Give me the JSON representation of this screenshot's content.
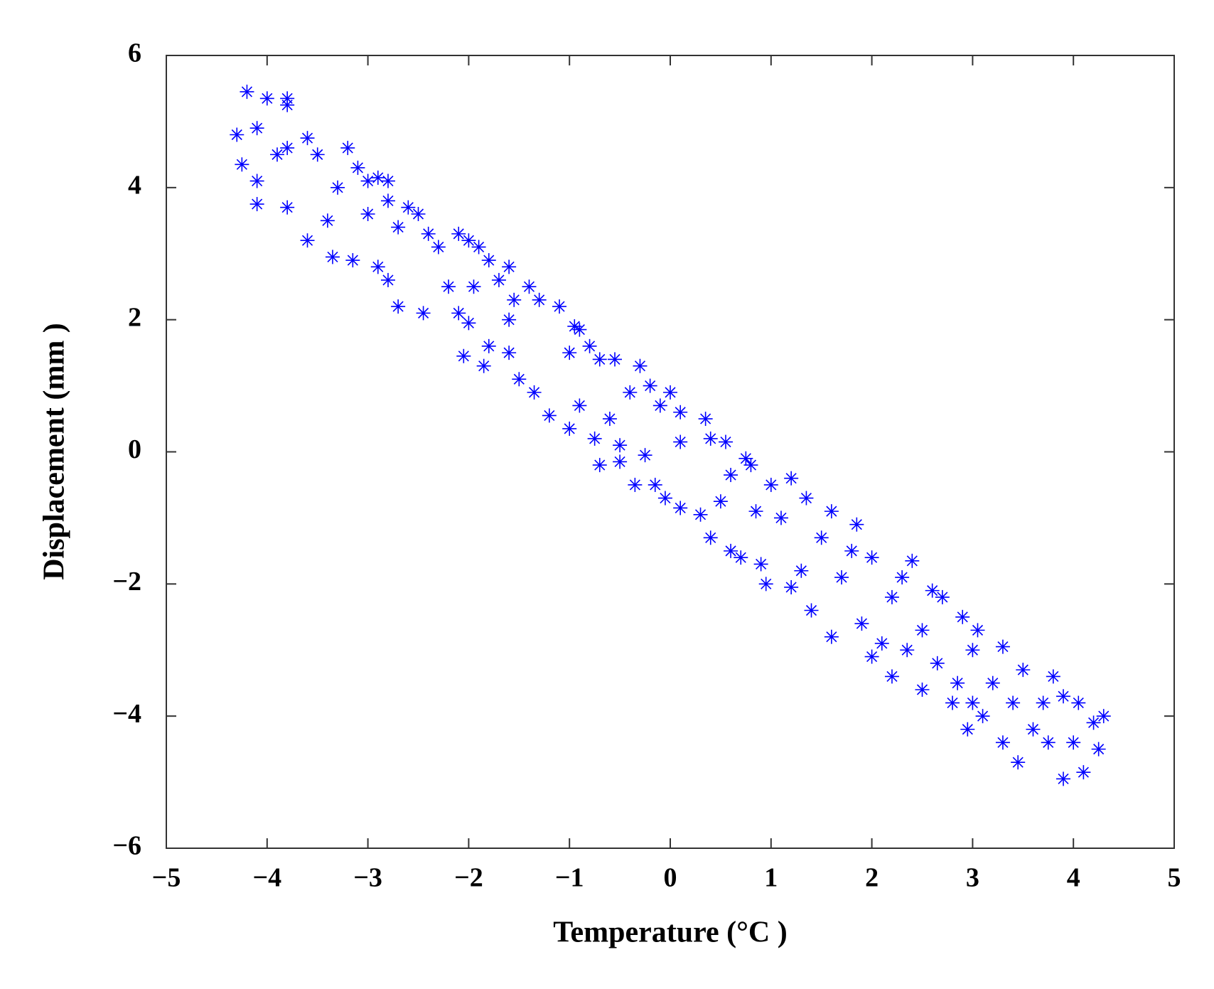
{
  "chart_data": {
    "type": "scatter",
    "x_label": "Temperature (°C )",
    "y_label": "Displacement (mm )",
    "color": "#0000ff",
    "grid": false,
    "xlim": [
      -5,
      5
    ],
    "ylim": [
      -6,
      6
    ],
    "xticks": [
      {
        "value": -5,
        "label": "−5"
      },
      {
        "value": -4,
        "label": "−4"
      },
      {
        "value": -3,
        "label": "−3"
      },
      {
        "value": -2,
        "label": "−2"
      },
      {
        "value": -1,
        "label": "−1"
      },
      0,
      1,
      2,
      3,
      4,
      5
    ],
    "yticks": [
      {
        "value": -6,
        "label": "−6"
      },
      {
        "value": -4,
        "label": "−4"
      },
      {
        "value": -2,
        "label": "−2"
      },
      0,
      2,
      4,
      6
    ],
    "x": [
      -4.2,
      -4.0,
      -3.8,
      -3.8,
      -4.3,
      -4.1,
      -4.25,
      -4.1,
      -4.1,
      -3.9,
      -3.8,
      -3.8,
      -3.6,
      -3.5,
      -3.6,
      -3.4,
      -3.3,
      -3.2,
      -3.1,
      -3.0,
      -2.9,
      -2.8,
      -3.35,
      -3.15,
      -2.9,
      -2.8,
      -2.7,
      -2.45,
      -3.0,
      -2.8,
      -2.7,
      -2.6,
      -2.5,
      -2.4,
      -2.3,
      -2.2,
      -2.1,
      -2.0,
      -1.9,
      -2.1,
      -2.0,
      -1.95,
      -1.8,
      -1.7,
      -1.6,
      -1.55,
      -1.6,
      -1.8,
      -2.05,
      -1.85,
      -1.6,
      -1.5,
      -1.4,
      -1.3,
      -1.35,
      -1.2,
      -1.1,
      -1.0,
      -0.95,
      -0.9,
      -1.0,
      -0.9,
      -0.8,
      -0.7,
      -0.75,
      -0.7,
      -0.6,
      -0.55,
      -0.5,
      -0.5,
      -0.4,
      -0.3,
      -0.35,
      -0.2,
      -0.25,
      -0.15,
      -0.1,
      0.0,
      -0.05,
      0.1,
      0.1,
      0.1,
      0.3,
      0.35,
      0.4,
      0.4,
      0.5,
      0.55,
      0.6,
      0.6,
      0.7,
      0.75,
      0.8,
      0.85,
      0.9,
      0.95,
      1.0,
      1.1,
      1.2,
      1.2,
      1.3,
      1.35,
      1.4,
      1.5,
      1.6,
      1.6,
      1.7,
      1.8,
      1.85,
      1.9,
      2.0,
      2.0,
      2.1,
      2.2,
      2.2,
      2.3,
      2.35,
      2.4,
      2.5,
      2.5,
      2.6,
      2.65,
      2.7,
      2.8,
      2.85,
      2.9,
      2.95,
      3.0,
      3.0,
      3.05,
      3.1,
      3.2,
      3.3,
      3.3,
      3.4,
      3.45,
      3.5,
      3.6,
      3.7,
      3.75,
      3.8,
      3.9,
      3.9,
      4.0,
      4.05,
      4.1,
      4.2,
      4.25,
      4.3
    ],
    "values": [
      5.45,
      5.35,
      5.35,
      5.25,
      4.8,
      4.9,
      4.35,
      4.1,
      3.75,
      4.5,
      4.6,
      3.7,
      4.75,
      4.5,
      3.2,
      3.5,
      4.0,
      4.6,
      4.3,
      4.1,
      4.15,
      4.1,
      2.95,
      2.9,
      2.8,
      2.6,
      2.2,
      2.1,
      3.6,
      3.8,
      3.4,
      3.7,
      3.6,
      3.3,
      3.1,
      2.5,
      3.3,
      3.2,
      3.1,
      2.1,
      1.95,
      2.5,
      2.9,
      2.6,
      2.8,
      2.3,
      2.0,
      1.6,
      1.45,
      1.3,
      1.5,
      1.1,
      2.5,
      2.3,
      0.9,
      0.55,
      2.2,
      1.5,
      1.9,
      1.85,
      0.35,
      0.7,
      1.6,
      1.4,
      0.2,
      -0.2,
      0.5,
      1.4,
      0.1,
      -0.15,
      0.9,
      1.3,
      -0.5,
      1.0,
      -0.05,
      -0.5,
      0.7,
      0.9,
      -0.7,
      0.15,
      0.6,
      -0.85,
      -0.95,
      0.5,
      0.2,
      -1.3,
      -0.75,
      0.15,
      -0.35,
      -1.5,
      -1.6,
      -0.1,
      -0.2,
      -0.9,
      -1.7,
      -2.0,
      -0.5,
      -1.0,
      -0.4,
      -2.05,
      -1.8,
      -0.7,
      -2.4,
      -1.3,
      -2.8,
      -0.9,
      -1.9,
      -1.5,
      -1.1,
      -2.6,
      -3.1,
      -1.6,
      -2.9,
      -2.2,
      -3.4,
      -1.9,
      -3.0,
      -1.65,
      -3.6,
      -2.7,
      -2.1,
      -3.2,
      -2.2,
      -3.8,
      -3.5,
      -2.5,
      -4.2,
      -3.0,
      -3.8,
      -2.7,
      -4.0,
      -3.5,
      -2.95,
      -4.4,
      -3.8,
      -4.7,
      -3.3,
      -4.2,
      -3.8,
      -4.4,
      -3.4,
      -4.95,
      -3.7,
      -4.4,
      -3.8,
      -4.85,
      -4.1,
      -4.5,
      -4.0
    ]
  }
}
